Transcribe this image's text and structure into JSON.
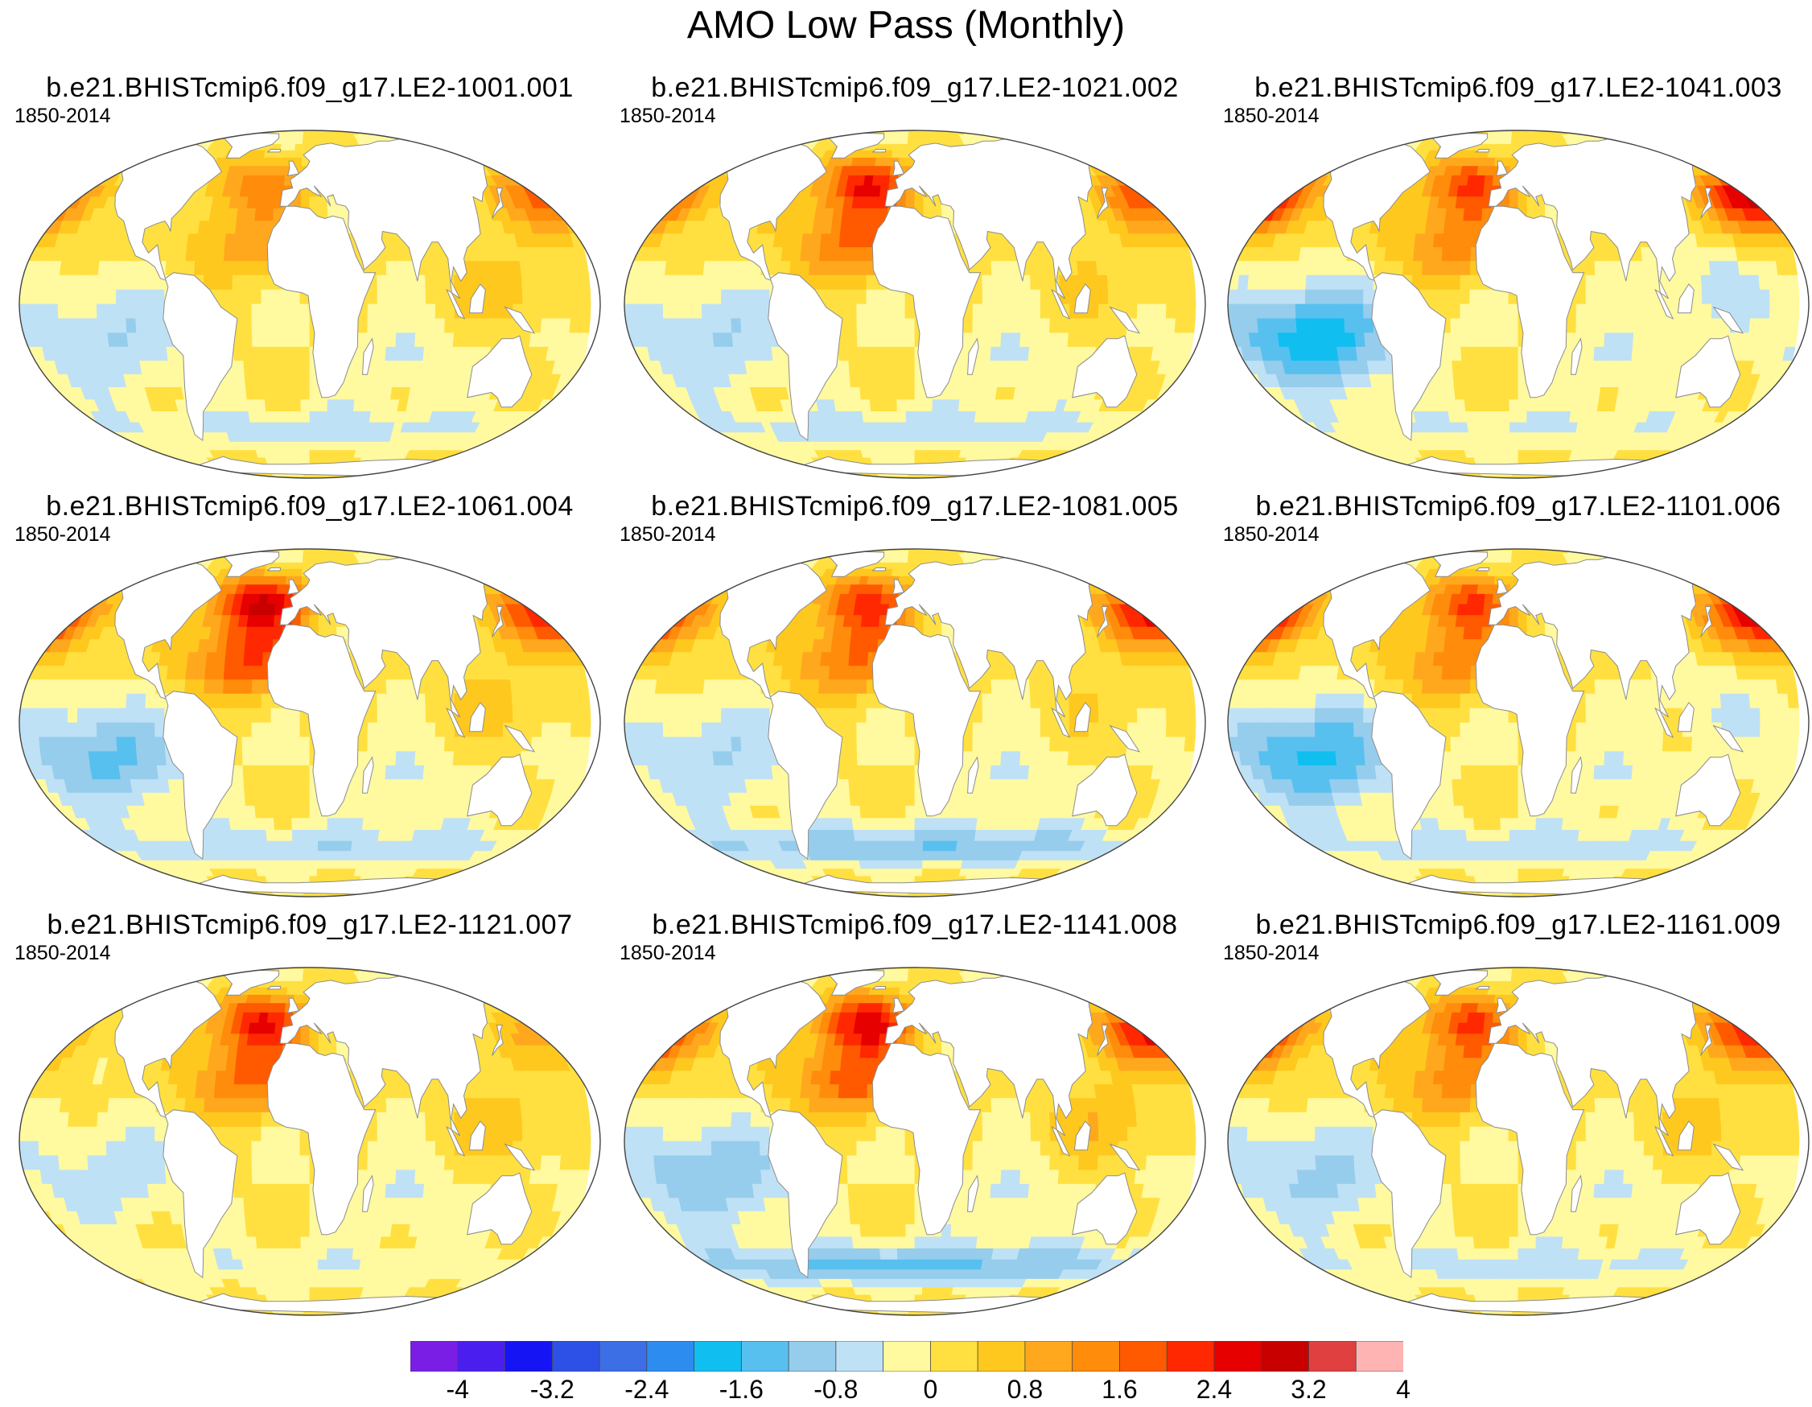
{
  "title": "AMO Low Pass (Monthly)",
  "panels": [
    {
      "title": "b.e21.BHISTcmip6.f09_g17.LE2-1001.001",
      "subtitle": "1850-2014",
      "pattern": {
        "npac": 2.0,
        "natl": 1.4,
        "pacTrop": -0.9,
        "so": -0.6,
        "indo": 0.6
      }
    },
    {
      "title": "b.e21.BHISTcmip6.f09_g17.LE2-1021.002",
      "subtitle": "1850-2014",
      "pattern": {
        "npac": 2.2,
        "natl": 2.4,
        "pacTrop": -0.9,
        "so": -0.7,
        "indo": 0.4
      }
    },
    {
      "title": "b.e21.BHISTcmip6.f09_g17.LE2-1041.003",
      "subtitle": "1850-2014",
      "pattern": {
        "npac": 3.4,
        "natl": 2.0,
        "pacTrop": -2.0,
        "so": -0.5,
        "indo": -0.6
      }
    },
    {
      "title": "b.e21.BHISTcmip6.f09_g17.LE2-1061.004",
      "subtitle": "1850-2014",
      "pattern": {
        "npac": 2.6,
        "natl": 2.8,
        "pacTrop": -1.4,
        "so": -0.8,
        "indo": 0.5
      }
    },
    {
      "title": "b.e21.BHISTcmip6.f09_g17.LE2-1081.005",
      "subtitle": "1850-2014",
      "pattern": {
        "npac": 2.8,
        "natl": 2.2,
        "pacTrop": -0.9,
        "so": -1.2,
        "indo": 0.3
      }
    },
    {
      "title": "b.e21.BHISTcmip6.f09_g17.LE2-1101.006",
      "subtitle": "1850-2014",
      "pattern": {
        "npac": 3.0,
        "natl": 2.0,
        "pacTrop": -1.8,
        "so": -0.7,
        "indo": -0.4
      }
    },
    {
      "title": "b.e21.BHISTcmip6.f09_g17.LE2-1121.007",
      "subtitle": "1850-2014",
      "pattern": {
        "npac": 1.0,
        "natl": 2.4,
        "pacTrop": -0.7,
        "so": -0.4,
        "indo": 0.6
      }
    },
    {
      "title": "b.e21.BHISTcmip6.f09_g17.LE2-1141.008",
      "subtitle": "1850-2014",
      "pattern": {
        "npac": 2.8,
        "natl": 2.6,
        "pacTrop": -1.3,
        "so": -1.4,
        "indo": 0.7
      }
    },
    {
      "title": "b.e21.BHISTcmip6.f09_g17.LE2-1161.009",
      "subtitle": "1850-2014",
      "pattern": {
        "npac": 2.6,
        "natl": 2.0,
        "pacTrop": -1.0,
        "so": -0.6,
        "indo": 0.5
      }
    }
  ],
  "colorbar": {
    "colors": [
      "#7a1ee6",
      "#4b1ef0",
      "#1414f5",
      "#2d50e6",
      "#3c6ee6",
      "#2d8cf0",
      "#10bff0",
      "#58c0ef",
      "#96cdec",
      "#bfe1f5",
      "#fff9a0",
      "#ffe040",
      "#ffc81e",
      "#ffa81e",
      "#ff8c0a",
      "#ff5a00",
      "#ff2800",
      "#e60000",
      "#c80000",
      "#e04040",
      "#ffb4b4"
    ],
    "labels": [
      "-4",
      "-3.2",
      "-2.4",
      "-1.6",
      "-0.8",
      "0",
      "0.8",
      "1.6",
      "2.4",
      "3.2",
      "4"
    ],
    "label_values": [
      -4,
      -3.2,
      -2.4,
      -1.6,
      -0.8,
      0,
      0.8,
      1.6,
      2.4,
      3.2,
      4
    ]
  },
  "colors": {
    "land": "#ffffff",
    "coast": "#8c8c8c"
  }
}
